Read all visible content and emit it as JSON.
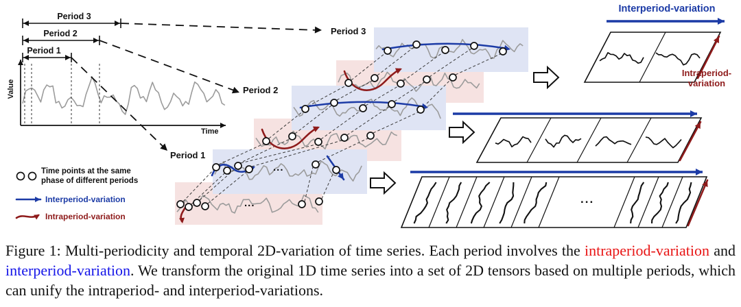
{
  "colors": {
    "interperiod_blue": "#1c3ba6",
    "intraperiod_red": "#8e1b1b",
    "series_gray": "#9b9b9b",
    "signal_black": "#111111",
    "blue_tint": "#dfe4f4",
    "pink_tint": "#f6e2e1",
    "caption_red": "#e81414",
    "caption_blue": "#1414e8"
  },
  "axes": {
    "ylabel": "Value",
    "xlabel": "Time"
  },
  "periods": {
    "p1": "Period 1",
    "p2": "Period 2",
    "p3": "Period 3"
  },
  "legend": {
    "phase_label": "Time points at the same phase of different periods",
    "interperiod": "Interperiod-variation",
    "intraperiod": "Intraperiod-variation"
  },
  "tensor": {
    "interperiod": "Interperiod-variation",
    "intraperiod_line1": "Intraperiod-",
    "intraperiod_line2": "variation",
    "ellipsis": "..."
  },
  "caption": {
    "part1": "Figure 1: Multi-periodicity and temporal 2D-variation of time series. Each period involves the ",
    "intra": "intraperiod-variation",
    "mid": " and ",
    "inter": "interperiod-variation",
    "part2": ". We transform the original 1D time series into a set of 2D tensors based on multiple periods, which can unify the intraperiod- and interperiod-variations."
  }
}
